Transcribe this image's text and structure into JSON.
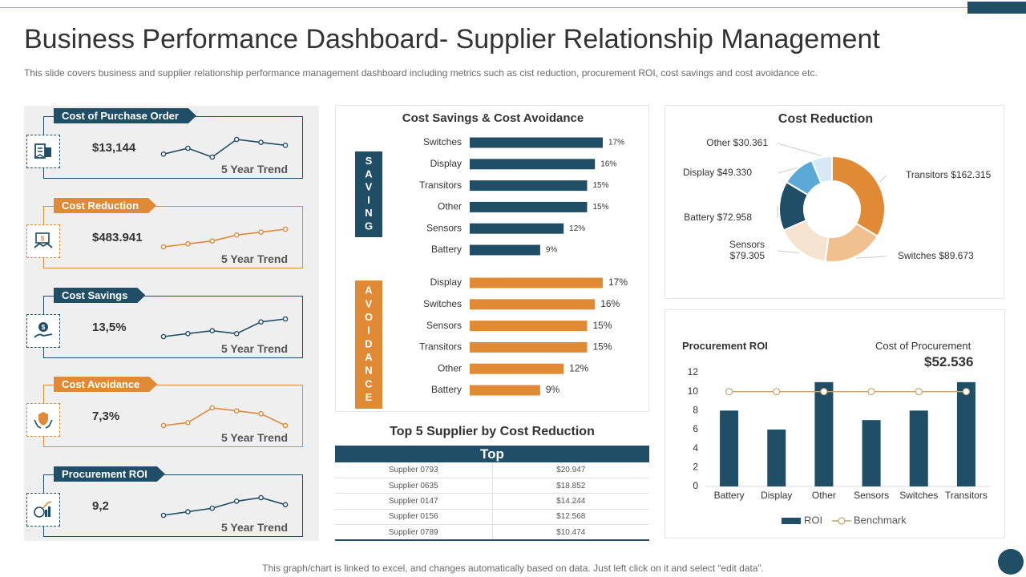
{
  "header": {
    "title": "Business Performance Dashboard- Supplier Relationship Management",
    "subtitle": "This slide covers business and supplier relationship performance management dashboard including metrics such as cist reduction, procurement ROI, cost savings and cost avoidance etc."
  },
  "kpis": [
    {
      "label": "Cost of Purchase Order",
      "value": "$13,144",
      "trend_label": "5 Year Trend",
      "icon": "purchase-order-icon",
      "color": "#1f4e66",
      "trend": [
        3,
        5,
        2,
        8,
        7,
        6
      ]
    },
    {
      "label": "Cost Reduction",
      "value": "$483.941",
      "trend_label": "5 Year Trend",
      "icon": "handshake-icon",
      "color": "#e08a36",
      "trend": [
        2,
        3,
        4,
        6,
        7,
        8
      ]
    },
    {
      "label": "Cost Savings",
      "value": "13,5%",
      "trend_label": "5 Year Trend",
      "icon": "money-hand-icon",
      "color": "#1f4e66",
      "trend": [
        2,
        3,
        4,
        3,
        7,
        8
      ]
    },
    {
      "label": "Cost Avoidance",
      "value": "7,3%",
      "trend_label": "5 Year Trend",
      "icon": "shield-hands-icon",
      "color": "#e08a36",
      "trend": [
        3,
        4,
        9,
        8,
        7,
        3
      ]
    },
    {
      "label": "Procurement ROI",
      "value": "9,2",
      "trend_label": "5 Year Trend",
      "icon": "growth-chart-icon",
      "color": "#1f4e66",
      "trend": [
        2,
        3,
        4,
        6,
        7,
        5
      ]
    }
  ],
  "colors": {
    "navy": "#1f4e66",
    "orange": "#e08a36",
    "light_orange": "#f0c08e",
    "beige": "#f5e3d0",
    "light_blue": "#5aa9d6",
    "pale_blue": "#d6eaf5"
  },
  "chart_data": [
    {
      "type": "bar",
      "orientation": "horizontal",
      "title": "Cost Savings & Cost Avoidance",
      "groups": [
        {
          "name": "SAVING",
          "color": "#1f4e66",
          "categories": [
            "Switches",
            "Display",
            "Transitors",
            "Other",
            "Sensors",
            "Battery"
          ],
          "values": [
            17,
            16,
            15,
            15,
            12,
            9
          ],
          "labels": [
            "17%",
            "16%",
            "15%",
            "15%",
            "12%",
            "9%"
          ]
        },
        {
          "name": "AVOIDANCE",
          "color": "#e08a36",
          "categories": [
            "Display",
            "Switches",
            "Sensors",
            "Transitors",
            "Other",
            "Battery"
          ],
          "values": [
            17,
            16,
            15,
            15,
            12,
            9
          ],
          "labels": [
            "17%",
            "16%",
            "15%",
            "15%",
            "12%",
            "9%"
          ]
        }
      ]
    },
    {
      "type": "pie",
      "title": "Cost Reduction",
      "donut": true,
      "slices": [
        {
          "label": "Transitors $162.315",
          "value": 162.315,
          "color": "#e08a36"
        },
        {
          "label": "Switches $89.673",
          "value": 89.673,
          "color": "#f0c08e"
        },
        {
          "label": "Sensors\n$79.305",
          "value": 79.305,
          "color": "#f5e3d0"
        },
        {
          "label": "Battery $72.958",
          "value": 72.958,
          "color": "#1f4e66"
        },
        {
          "label": "Display $49.330",
          "value": 49.33,
          "color": "#5aa9d6"
        },
        {
          "label": "Other $30.361",
          "value": 30.361,
          "color": "#d6eaf5"
        }
      ]
    },
    {
      "type": "bar",
      "title": "Procurement ROI",
      "side_title": "Cost of Procurement",
      "side_value": "$52.536",
      "categories": [
        "Battery",
        "Display",
        "Other",
        "Sensors",
        "Switches",
        "Transitors"
      ],
      "series": [
        {
          "name": "ROI",
          "type": "bar",
          "color": "#1f4e66",
          "values": [
            8,
            6,
            11,
            7,
            8,
            11
          ]
        },
        {
          "name": "Benchmark",
          "type": "line",
          "color": "#c9a56a",
          "values": [
            10,
            10,
            10,
            10,
            10,
            10
          ]
        }
      ],
      "ylim": [
        0,
        12
      ],
      "yticks": [
        0,
        2,
        4,
        6,
        8,
        10,
        12
      ]
    }
  ],
  "top5": {
    "title": "Top 5 Supplier by Cost Reduction",
    "header": "Top",
    "rows": [
      {
        "supplier": "Supplier 0793",
        "amount": "$20.947"
      },
      {
        "supplier": "Supplier 0635",
        "amount": "$18.852"
      },
      {
        "supplier": "Supplier 0147",
        "amount": "$14.244"
      },
      {
        "supplier": "Supplier 0156",
        "amount": "$12.568"
      },
      {
        "supplier": "Supplier 0789",
        "amount": "$10.474"
      }
    ]
  },
  "footer": "This graph/chart is linked to excel,  and changes automatically based on data. Just left click on it and select “edit data”."
}
